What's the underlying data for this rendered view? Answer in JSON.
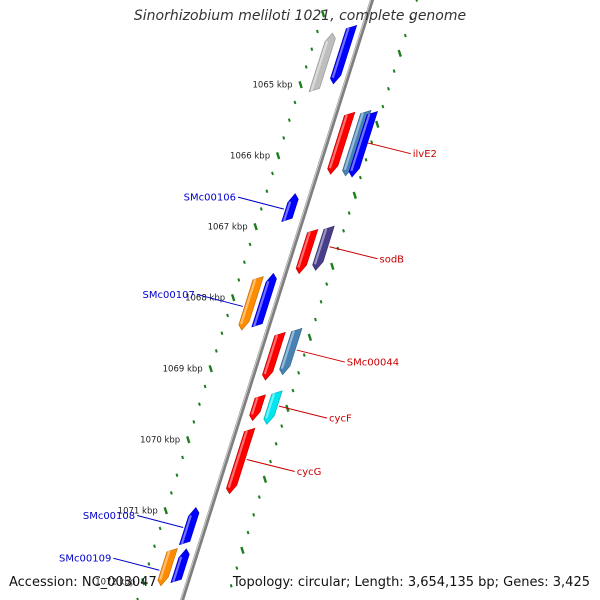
{
  "title": "Sinorhizobium meliloti 1021, complete genome",
  "footer": {
    "accession_label": "Accession:",
    "accession": "NC_003047",
    "topology_label": "Topology:",
    "topology": "circular",
    "length_label": "Length:",
    "length": "3,654,135 bp",
    "genes_label": "Genes:",
    "genes": "3,425"
  },
  "colors": {
    "background": "#ffffff",
    "title_text": "#333333",
    "backbone": "#7f7f7f",
    "tick": "#1e7d1e",
    "left_label": "#0000cc",
    "right_label": "#cc0000",
    "gene_blue": "#0000ff",
    "gene_red": "#ff0000",
    "gene_orange": "#ff8c00",
    "gene_steelblue": "#4682b4",
    "gene_slate": "#483d8b",
    "gene_cyan": "#00e5ee",
    "gene_gray": "#bebebe"
  },
  "map": {
    "kbp_ticks": [
      {
        "kbp": 1065,
        "label": "1065 kbp"
      },
      {
        "kbp": 1066,
        "label": "1066 kbp"
      },
      {
        "kbp": 1067,
        "label": "1067 kbp"
      },
      {
        "kbp": 1068,
        "label": "1068 kbp"
      },
      {
        "kbp": 1069,
        "label": "1069 kbp"
      },
      {
        "kbp": 1070,
        "label": "1070 kbp"
      },
      {
        "kbp": 1071,
        "label": "1071 kbp"
      },
      {
        "kbp": 1072,
        "label": "1072 kbp"
      }
    ],
    "genes": [
      {
        "start_kbp": 1064.35,
        "end_kbp": 1065.15,
        "strand": "reverse",
        "color": "gene_gray",
        "label": ""
      },
      {
        "start_kbp": 1064.35,
        "end_kbp": 1065.15,
        "strand": "forward",
        "color": "gene_blue",
        "label": ""
      },
      {
        "start_kbp": 1065.7,
        "end_kbp": 1066.55,
        "strand": "forward",
        "color": "gene_red",
        "label": ""
      },
      {
        "start_kbp": 1065.75,
        "end_kbp": 1066.65,
        "strand": "forward",
        "color": "gene_steelblue",
        "label": "ilvE2",
        "side": "right"
      },
      {
        "start_kbp": 1065.8,
        "end_kbp": 1066.7,
        "strand": "forward",
        "color": "gene_blue",
        "label": ""
      },
      {
        "start_kbp": 1066.68,
        "end_kbp": 1067.05,
        "strand": "reverse",
        "color": "gene_blue",
        "label": "SMc00106",
        "side": "left"
      },
      {
        "start_kbp": 1067.35,
        "end_kbp": 1067.95,
        "strand": "forward",
        "color": "gene_red",
        "label": ""
      },
      {
        "start_kbp": 1067.38,
        "end_kbp": 1067.98,
        "strand": "forward",
        "color": "gene_slate",
        "label": "sodB",
        "side": "right"
      },
      {
        "start_kbp": 1067.82,
        "end_kbp": 1068.55,
        "strand": "forward",
        "color": "gene_orange",
        "label": "SMc00107",
        "side": "left"
      },
      {
        "start_kbp": 1067.82,
        "end_kbp": 1068.55,
        "strand": "reverse",
        "color": "gene_blue",
        "label": ""
      },
      {
        "start_kbp": 1068.8,
        "end_kbp": 1069.45,
        "strand": "forward",
        "color": "gene_red",
        "label": ""
      },
      {
        "start_kbp": 1068.82,
        "end_kbp": 1069.45,
        "strand": "forward",
        "color": "gene_steelblue",
        "label": "SMc00044",
        "side": "right"
      },
      {
        "start_kbp": 1069.68,
        "end_kbp": 1070.02,
        "strand": "forward",
        "color": "gene_red",
        "label": ""
      },
      {
        "start_kbp": 1069.7,
        "end_kbp": 1070.15,
        "strand": "forward",
        "color": "gene_cyan",
        "label": "cycF",
        "side": "right"
      },
      {
        "start_kbp": 1070.15,
        "end_kbp": 1071.05,
        "strand": "forward",
        "color": "gene_red",
        "label": "cycG",
        "side": "right"
      },
      {
        "start_kbp": 1071.1,
        "end_kbp": 1071.6,
        "strand": "reverse",
        "color": "gene_blue",
        "label": "SMc00108",
        "side": "left"
      },
      {
        "start_kbp": 1071.65,
        "end_kbp": 1072.15,
        "strand": "forward",
        "color": "gene_orange",
        "label": "SMc00109",
        "side": "left"
      },
      {
        "start_kbp": 1071.7,
        "end_kbp": 1072.15,
        "strand": "reverse",
        "color": "gene_blue",
        "label": ""
      }
    ]
  }
}
